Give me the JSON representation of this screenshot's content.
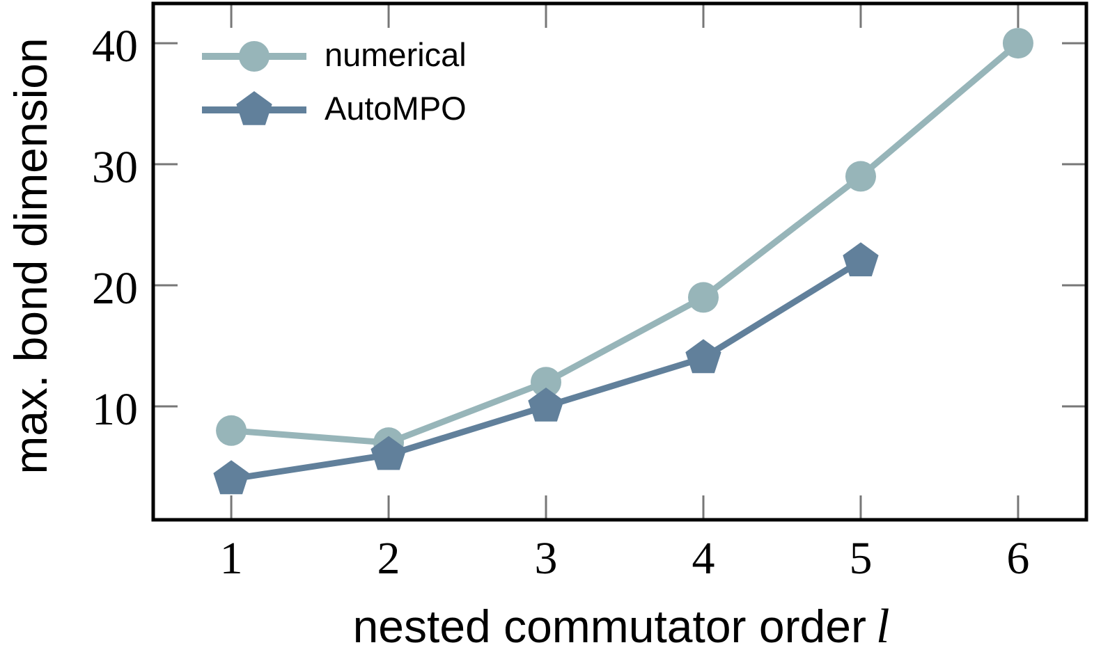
{
  "chart_data": {
    "type": "line",
    "title": "",
    "xlabel": "nested commutator order",
    "xlabel_math": "l",
    "ylabel": "max. bond dimension",
    "x_ticks": [
      1,
      2,
      3,
      4,
      5,
      6
    ],
    "y_ticks": [
      10,
      20,
      30,
      40
    ],
    "xlim": [
      0.504,
      6.434
    ],
    "ylim": [
      0.63,
      43.28
    ],
    "grid": false,
    "legend_position": "top-left inside, no frame",
    "series": [
      {
        "name": "numerical",
        "marker": "circle",
        "color": "#97b5b9",
        "x": [
          1,
          2,
          3,
          4,
          5,
          6
        ],
        "values": [
          8,
          7,
          12,
          19,
          29,
          40
        ]
      },
      {
        "name": "AutoMPO",
        "marker": "pentagon",
        "color": "#61809b",
        "x": [
          1,
          2,
          3,
          4,
          5
        ],
        "values": [
          4,
          6,
          10,
          14,
          22
        ]
      }
    ]
  },
  "colors": {
    "background": "#ffffff",
    "frame": "#000000",
    "tick": "#777777",
    "text": "#000000"
  }
}
